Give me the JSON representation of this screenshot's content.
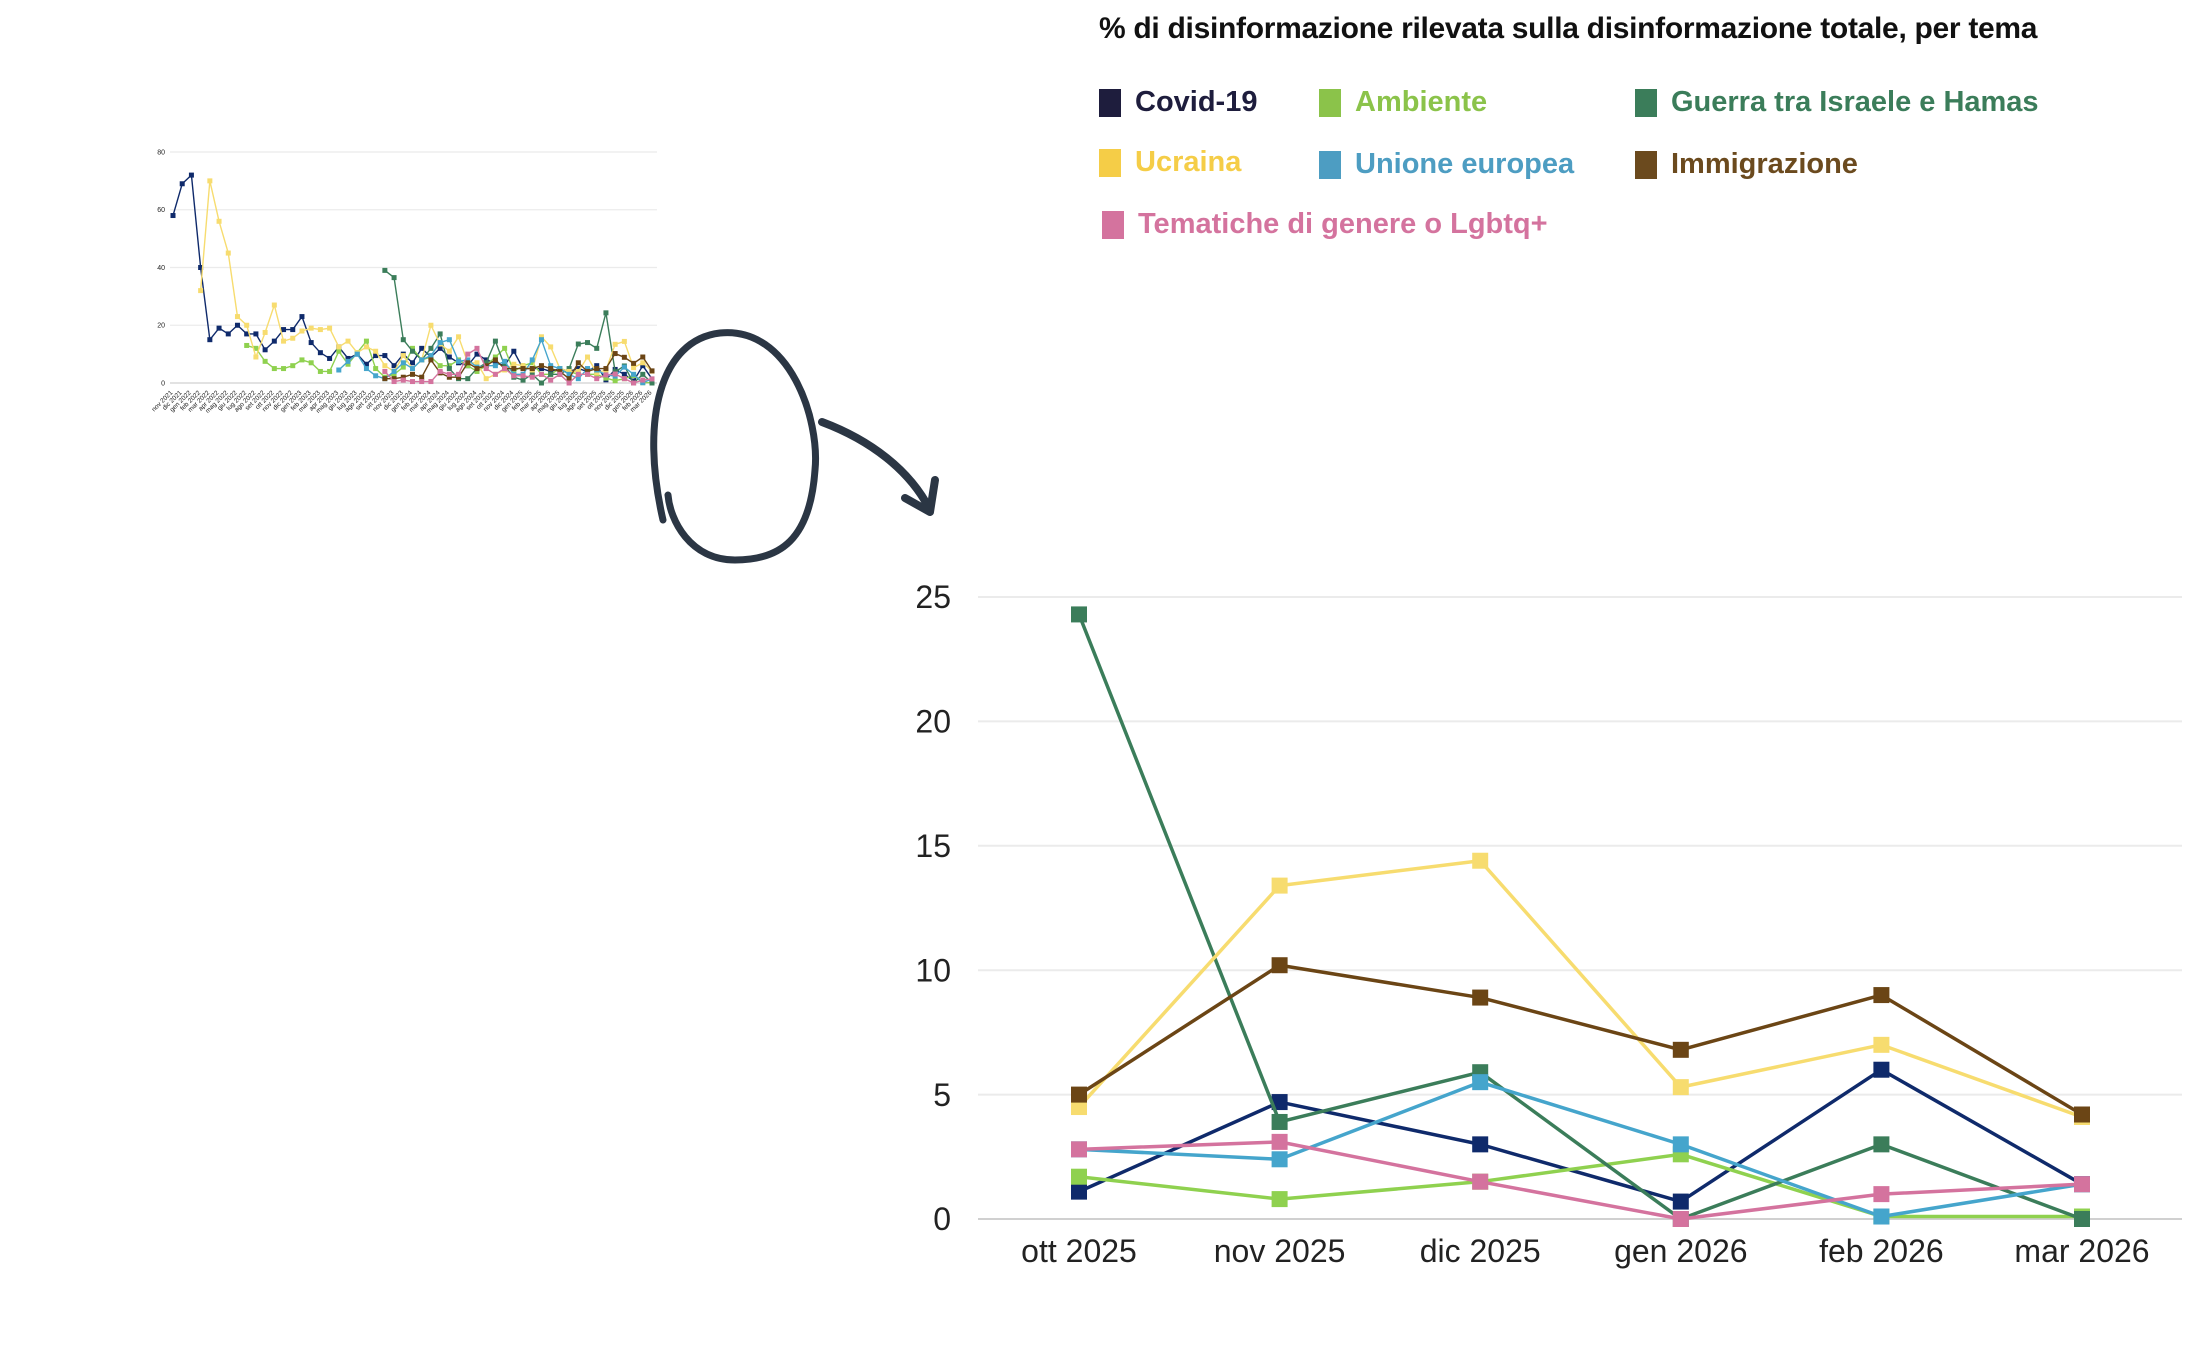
{
  "chart_data": [
    {
      "type": "line",
      "title": "% di disinformazione rilevata sulla disinformazione totale, per tema",
      "xlabel": "",
      "ylabel": "",
      "ylim": [
        0,
        25
      ],
      "yticks": [
        0,
        5,
        10,
        15,
        20,
        25
      ],
      "grid": true,
      "legend_position": "top",
      "categories": [
        "ott 2025",
        "nov 2025",
        "dic 2025",
        "gen 2026",
        "feb 2026",
        "mar 2026"
      ],
      "series": [
        {
          "name": "Covid-19",
          "color": "#0f2a6b",
          "legend_color": "#1e1d3d",
          "values": [
            1.1,
            4.7,
            3.0,
            0.7,
            6.0,
            1.4
          ]
        },
        {
          "name": "Ambiente",
          "color": "#8fd14f",
          "legend_color": "#8bc34a",
          "values": [
            1.7,
            0.8,
            1.5,
            2.6,
            0.1,
            0.1
          ]
        },
        {
          "name": "Guerra tra Israele e Hamas",
          "color": "#3b7d5a",
          "legend_color": "#3b7d5a",
          "values": [
            24.3,
            3.9,
            5.9,
            0.0,
            3.0,
            0.0
          ]
        },
        {
          "name": "Ucraina",
          "color": "#f7dc6f",
          "legend_color": "#f5cd47",
          "values": [
            4.5,
            13.4,
            14.4,
            5.3,
            7.0,
            4.1
          ]
        },
        {
          "name": "Unione europea",
          "color": "#45a5cc",
          "legend_color": "#4d9dc2",
          "values": [
            2.8,
            2.4,
            5.5,
            3.0,
            0.1,
            1.4
          ]
        },
        {
          "name": "Immigrazione",
          "color": "#6b4515",
          "legend_color": "#6b4a1e",
          "values": [
            5.0,
            10.2,
            8.9,
            6.8,
            9.0,
            4.2
          ]
        },
        {
          "name": "Tematiche di genere o Lgbtq+",
          "color": "#d4739e",
          "legend_color": "#d4739e",
          "values": [
            2.8,
            3.1,
            1.5,
            0.0,
            1.0,
            1.4
          ]
        }
      ]
    },
    {
      "type": "line",
      "title": "",
      "ylim": [
        0,
        80
      ],
      "yticks": [
        0,
        20,
        40,
        60,
        80
      ],
      "grid": true,
      "categories": [
        "nov 2021",
        "dic 2021",
        "gen 2022",
        "feb 2022",
        "mar 2022",
        "apr 2022",
        "mag 2022",
        "giu 2022",
        "lug 2022",
        "ago 2022",
        "set 2022",
        "ott 2022",
        "nov 2022",
        "dic 2022",
        "gen 2023",
        "feb 2023",
        "mar 2023",
        "apr 2023",
        "mag 2023",
        "giu 2023",
        "lug 2023",
        "ago 2023",
        "set 2023",
        "ott 2023",
        "nov 2023",
        "dic 2023",
        "gen 2024",
        "feb 2024",
        "mar 2024",
        "apr 2024",
        "mag 2024",
        "giu 2024",
        "lug 2024",
        "ago 2024",
        "set 2024",
        "ott 2024",
        "nov 2024",
        "dic 2024",
        "gen 2025",
        "feb 2025",
        "mar 2025",
        "apr 2025",
        "mag 2025",
        "giu 2025",
        "lug 2025",
        "ago 2025",
        "set 2025",
        "ott 2025",
        "nov 2025",
        "dic 2025",
        "gen 2026",
        "feb 2026",
        "mar 2026"
      ],
      "series": [
        {
          "name": "Covid-19",
          "color": "#0f2a6b",
          "values": [
            58,
            69,
            72,
            40,
            15,
            19,
            17,
            20,
            17,
            17,
            11.5,
            14.5,
            18.5,
            18.5,
            23,
            14,
            10.5,
            8.5,
            12.5,
            8.5,
            10,
            6.5,
            9.5,
            9.5,
            6,
            10,
            7,
            12,
            9,
            12,
            9,
            7,
            6,
            10,
            8,
            7,
            6,
            11,
            5,
            5,
            5,
            4,
            5,
            4,
            5,
            4,
            6,
            1.1,
            4.7,
            3.0,
            0.7,
            6.0,
            1.4
          ]
        },
        {
          "name": "Ambiente",
          "color": "#8fd14f",
          "values": [
            null,
            null,
            null,
            null,
            null,
            null,
            null,
            null,
            13,
            12,
            7.5,
            5,
            5,
            6,
            8,
            7,
            4,
            4,
            11,
            6.5,
            10.5,
            14.5,
            5,
            2,
            3,
            5.5,
            12,
            8,
            9,
            6,
            6,
            8,
            6,
            4,
            6,
            9,
            12,
            4,
            6,
            7,
            3,
            3,
            5,
            4,
            3,
            3,
            3,
            1.7,
            0.8,
            1.5,
            2.6,
            0.1,
            0.1
          ]
        },
        {
          "name": "Guerra tra Israele e Hamas",
          "color": "#3b7d5a",
          "values": [
            null,
            null,
            null,
            null,
            null,
            null,
            null,
            null,
            null,
            null,
            null,
            null,
            null,
            null,
            null,
            null,
            null,
            null,
            null,
            null,
            null,
            null,
            null,
            39,
            36.5,
            15,
            11,
            8,
            12,
            17,
            5,
            1.5,
            1.5,
            5,
            7,
            14.5,
            6,
            2,
            1,
            3,
            0,
            3,
            3,
            5,
            13.5,
            14,
            12,
            24.3,
            3.9,
            5.9,
            0.0,
            3.0,
            0.0
          ]
        },
        {
          "name": "Ucraina",
          "color": "#f7dc6f",
          "values": [
            null,
            null,
            null,
            32,
            70,
            56,
            45,
            23,
            20,
            9,
            17.5,
            27,
            14.5,
            15.5,
            18,
            19,
            18.5,
            19,
            12.5,
            14.5,
            10.5,
            12.5,
            11,
            6,
            4,
            9.5,
            5,
            8,
            20,
            13.5,
            11,
            16,
            7,
            7,
            1.5,
            3,
            4.5,
            6.5,
            6,
            4.5,
            16,
            12.5,
            5,
            4,
            4,
            9,
            3.5,
            4.5,
            13.4,
            14.4,
            5.3,
            7.0,
            4.1
          ]
        },
        {
          "name": "Unione europea",
          "color": "#45a5cc",
          "values": [
            null,
            null,
            null,
            null,
            null,
            null,
            null,
            null,
            null,
            null,
            null,
            null,
            null,
            null,
            null,
            null,
            null,
            null,
            4.5,
            7.5,
            10,
            5,
            2.5,
            1.5,
            4,
            7,
            5,
            8,
            9.5,
            14,
            15,
            7.5,
            8,
            5.5,
            6,
            6,
            7.5,
            3,
            3,
            8,
            15,
            6,
            5,
            3,
            1.5,
            5,
            4.5,
            2.8,
            2.4,
            5.5,
            3.0,
            0.1,
            1.4
          ]
        },
        {
          "name": "Immigrazione",
          "color": "#6b4515",
          "values": [
            null,
            null,
            null,
            null,
            null,
            null,
            null,
            null,
            null,
            null,
            null,
            null,
            null,
            null,
            null,
            null,
            null,
            null,
            null,
            null,
            null,
            null,
            null,
            1.5,
            1.5,
            2,
            3,
            2,
            8,
            3.5,
            2,
            2,
            7,
            5,
            6,
            8,
            5,
            5,
            5,
            5,
            6,
            5,
            4,
            1.5,
            7,
            4,
            5,
            5.0,
            10.2,
            8.9,
            6.8,
            9.0,
            4.2
          ]
        },
        {
          "name": "Tematiche di genere o Lgbtq+",
          "color": "#d4739e",
          "values": [
            null,
            null,
            null,
            null,
            null,
            null,
            null,
            null,
            null,
            null,
            null,
            null,
            null,
            null,
            null,
            null,
            null,
            null,
            null,
            null,
            null,
            null,
            null,
            4,
            0.5,
            1,
            0.5,
            0.5,
            0.5,
            4,
            3,
            3,
            10,
            12,
            5,
            3,
            5,
            2.5,
            2.5,
            2,
            3,
            1,
            3,
            0,
            3,
            3,
            1.5,
            2.8,
            3.1,
            1.5,
            0.0,
            1.0,
            1.4
          ]
        }
      ]
    }
  ],
  "annotation": {
    "highlight": "circle-around-last-six-months",
    "arrow": "curved-arrow-to-zoomed-chart",
    "stroke_color": "#2b3644"
  }
}
